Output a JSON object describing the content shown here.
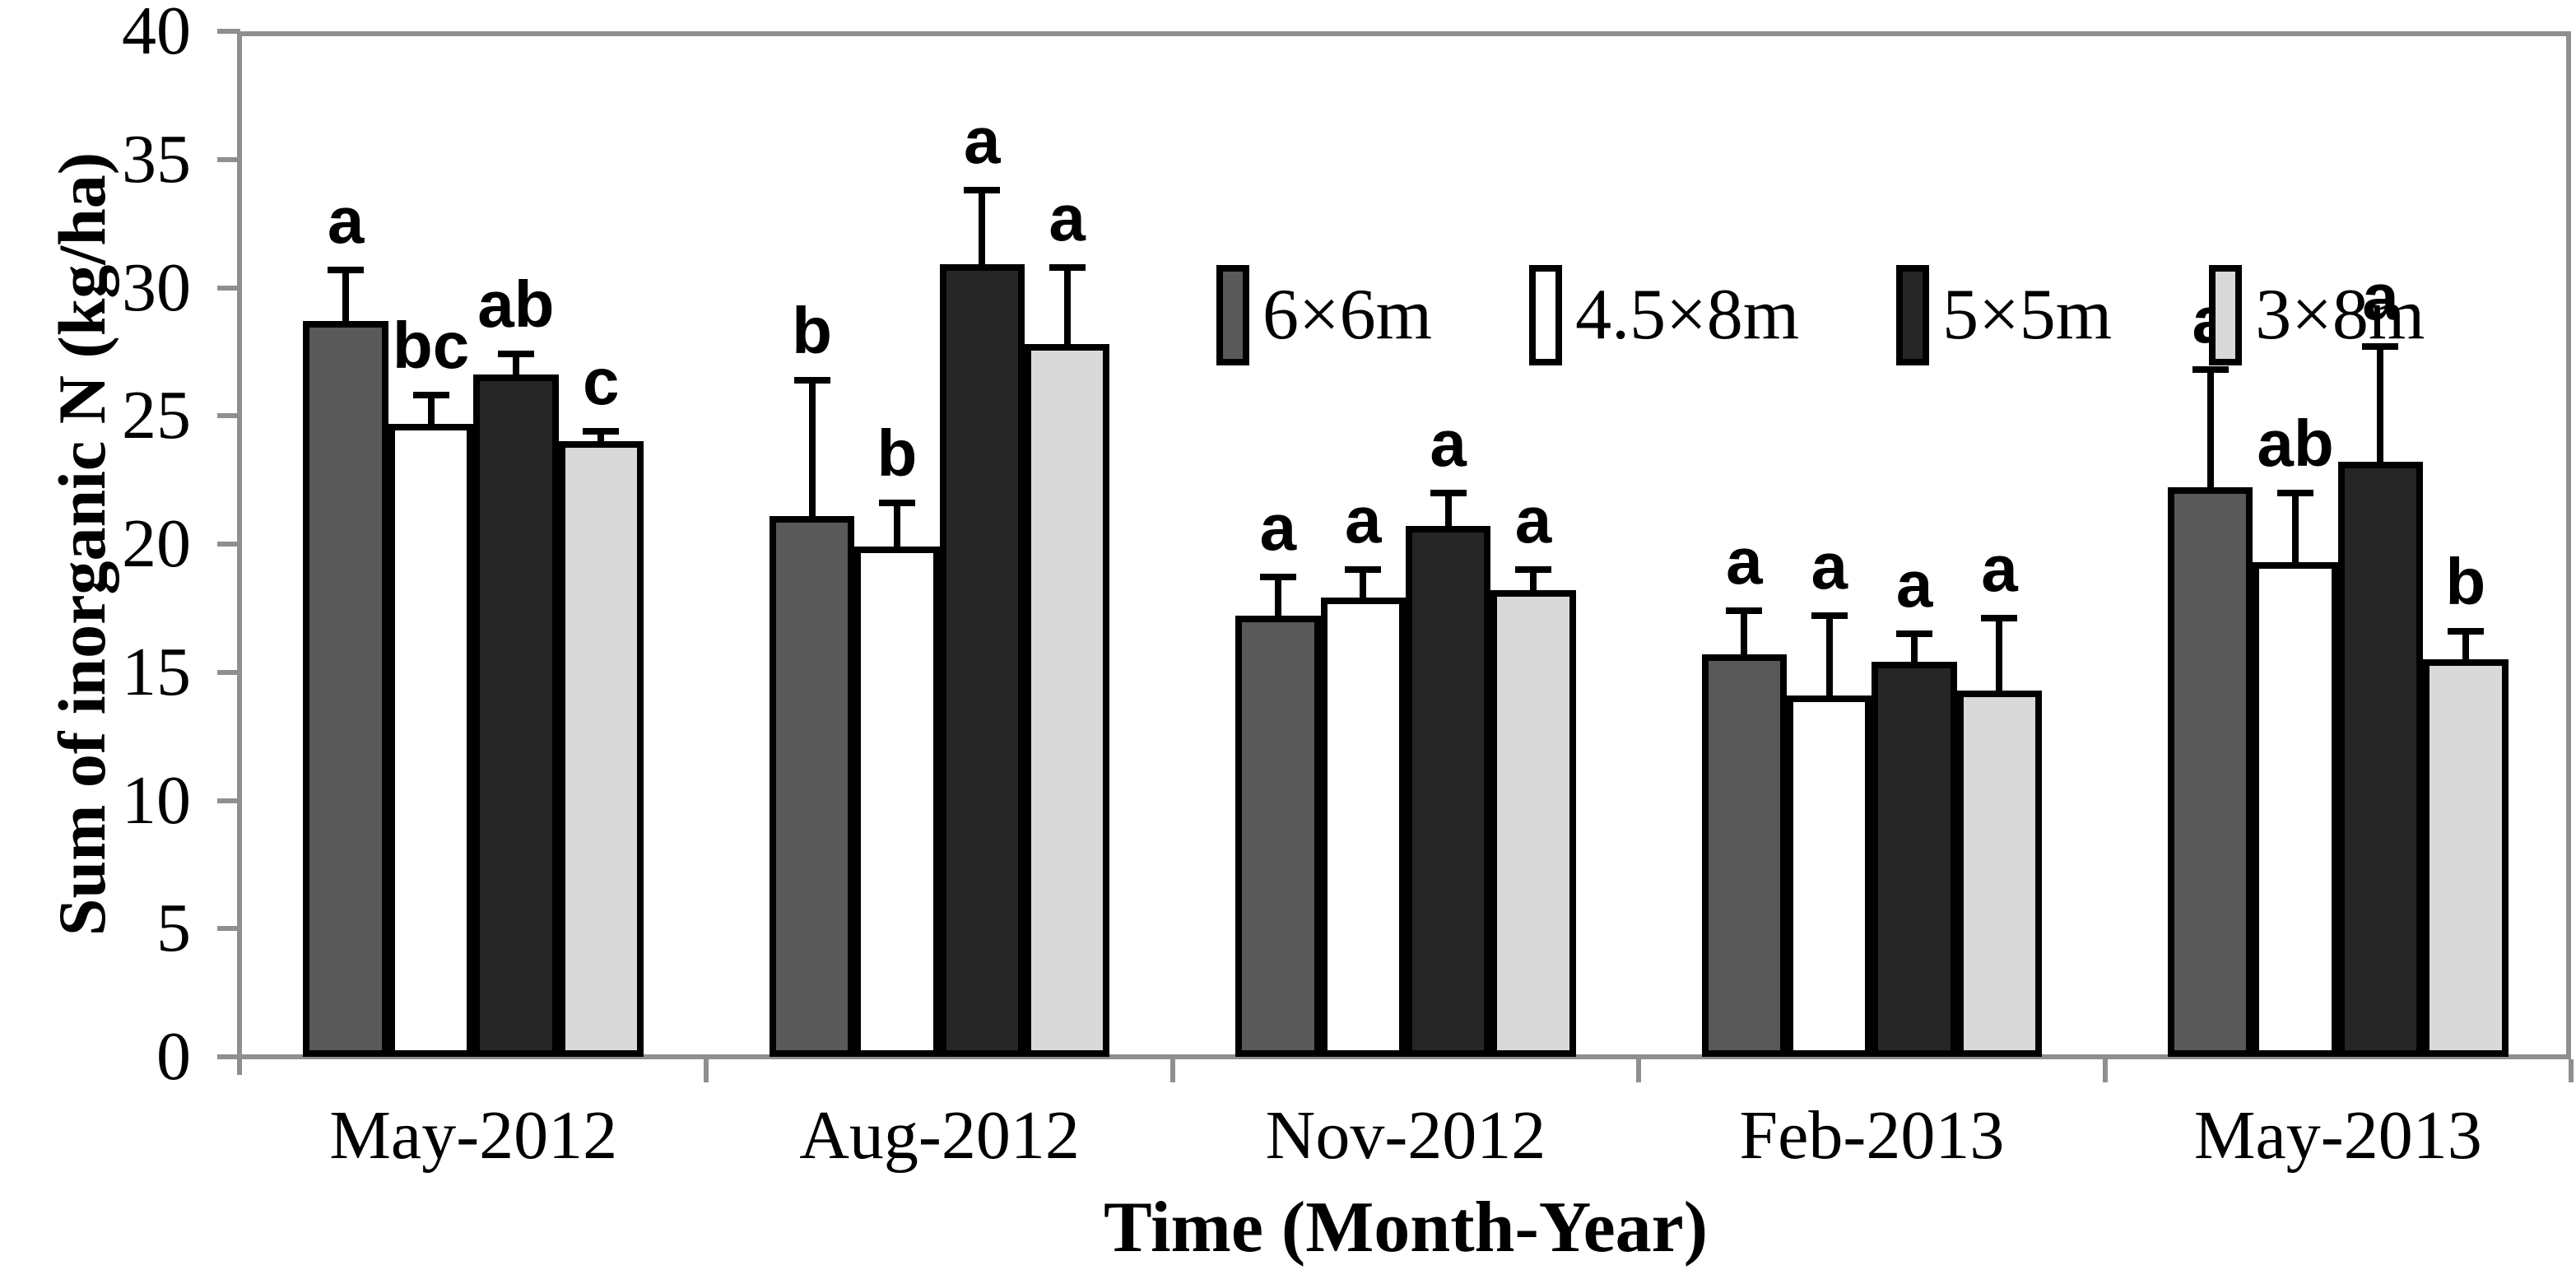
{
  "chart_data": {
    "type": "bar",
    "title": "",
    "xlabel": "Time (Month-Year)",
    "ylabel": "Sum of inorganic N (kg/ha)",
    "ylim": [
      0,
      40
    ],
    "yticks": [
      0,
      5,
      10,
      15,
      20,
      25,
      30,
      35,
      40
    ],
    "grid": false,
    "legend_position": "top-center-inside",
    "error_bars": "upper-only",
    "categories": [
      "May-2012",
      "Aug-2012",
      "Nov-2012",
      "Feb-2013",
      "May-2013"
    ],
    "series": [
      {
        "name": "6×6m",
        "color": "#595959",
        "values": [
          28.7,
          21.1,
          17.2,
          15.7,
          22.2
        ],
        "errors_upper": [
          2.0,
          5.3,
          1.5,
          1.7,
          4.6
        ],
        "sig_letters": [
          "a",
          "b",
          "a",
          "a",
          "a"
        ]
      },
      {
        "name": "4.5×8m",
        "color": "#ffffff",
        "values": [
          24.7,
          19.9,
          17.9,
          14.1,
          19.3
        ],
        "errors_upper": [
          1.1,
          1.7,
          1.1,
          3.1,
          2.7
        ],
        "sig_letters": [
          "bc",
          "b",
          "a",
          "a",
          "ab"
        ]
      },
      {
        "name": "5×5m",
        "color": "#262626",
        "values": [
          26.6,
          30.9,
          20.7,
          15.4,
          23.2
        ],
        "errors_upper": [
          0.8,
          2.9,
          1.3,
          1.1,
          4.5
        ],
        "sig_letters": [
          "ab",
          "a",
          "a",
          "a",
          "a"
        ]
      },
      {
        "name": "3×8m",
        "color": "#d9d9d9",
        "values": [
          24.0,
          27.8,
          18.2,
          14.3,
          15.5
        ],
        "errors_upper": [
          0.4,
          3.0,
          0.8,
          2.8,
          1.1
        ],
        "sig_letters": [
          "c",
          "a",
          "a",
          "a",
          "b"
        ]
      }
    ],
    "style": {
      "axis_color": "#8f8f8f",
      "bar_border_color": "#000000",
      "error_bar_color": "#000000",
      "sig_letter_color": "#000000"
    }
  }
}
